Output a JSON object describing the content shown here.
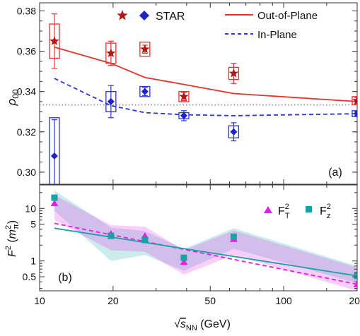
{
  "chart_data": [
    {
      "type": "scatter",
      "panel_label": "(a)",
      "ylabel": "ρ00",
      "yscale": "linear",
      "xscale": "log",
      "xlim": [
        10,
        200
      ],
      "ylim": [
        0.294,
        0.384
      ],
      "yticks": [
        0.3,
        0.32,
        0.34,
        0.36,
        0.38
      ],
      "ytick_labels": [
        "0.30",
        "0.32",
        "0.34",
        "0.36",
        "0.38"
      ],
      "reference_line": {
        "y": 0.3333,
        "style": "dotted"
      },
      "legend": [
        {
          "label": "STAR",
          "markers": [
            "star",
            "diamond"
          ]
        },
        {
          "label": "Out-of-Plane",
          "style": "solid",
          "color": "#e8322d"
        },
        {
          "label": "In-Plane",
          "style": "dashed",
          "color": "#2b35d6"
        }
      ],
      "series": [
        {
          "name": "STAR",
          "marker": "star",
          "color": "#b01818",
          "box_color": "#e8322d",
          "x": [
            11.5,
            19.6,
            27,
            39,
            62.4,
            200
          ],
          "y": [
            0.365,
            0.359,
            0.361,
            0.3375,
            0.349,
            0.3355
          ],
          "yerr": [
            0.0135,
            0.006,
            0.002,
            0.002,
            0.005,
            0.0015
          ],
          "sys": [
            0.0085,
            0.005,
            0.0035,
            0.0025,
            0.003,
            0.002
          ]
        },
        {
          "name": "STAR",
          "marker": "diamond",
          "color": "#1e22c8",
          "box_color": "#2b35d6",
          "x": [
            11.5,
            19.6,
            27,
            39,
            62.4,
            200
          ],
          "y": [
            0.308,
            0.335,
            0.34,
            0.328,
            0.32,
            0.329
          ],
          "yerr": [
            0.018,
            0.008,
            0.002,
            0.0025,
            0.0045,
            0.001
          ],
          "sys": [
            0.019,
            0.005,
            0.0025,
            0.0015,
            0.003,
            0.0015
          ]
        },
        {
          "name": "Out-of-Plane",
          "style": "solid",
          "color": "#e8322d",
          "x": [
            11.5,
            19.6,
            27,
            39,
            62.4,
            200
          ],
          "y": [
            0.362,
            0.354,
            0.347,
            0.3435,
            0.339,
            0.335
          ]
        },
        {
          "name": "In-Plane",
          "style": "dashed",
          "color": "#2b35d6",
          "x": [
            11.5,
            19.6,
            27,
            39,
            62.4,
            200
          ],
          "y": [
            0.3465,
            0.333,
            0.3295,
            0.3285,
            0.328,
            0.329
          ]
        }
      ]
    },
    {
      "type": "scatter",
      "panel_label": "(b)",
      "xlabel_parts": {
        "root": "√",
        "s": "s",
        "sub": "NN",
        "unit": " (GeV)"
      },
      "ylabel_parts": {
        "F": "F",
        "sup": "2",
        "open": " (",
        "m": "m",
        "msup": "2",
        "msub": "π",
        "close": ")"
      },
      "yscale": "log",
      "xscale": "log",
      "xlim": [
        10,
        200
      ],
      "ylim": [
        0.27,
        28
      ],
      "xticks": [
        10,
        20,
        50,
        100,
        200
      ],
      "xtick_labels": [
        "10",
        "20",
        "50",
        "100",
        "200"
      ],
      "yticks": [
        0.5,
        1,
        5,
        10
      ],
      "ytick_labels": [
        "0.5",
        "1",
        "5",
        "10"
      ],
      "legend": [
        {
          "label": "F",
          "sub": "T",
          "sup": "2",
          "marker": "triangle",
          "color": "#e61ee6"
        },
        {
          "label": "F",
          "sub": "z",
          "sup": "2",
          "marker": "square",
          "color": "#17a3a3"
        }
      ],
      "series": [
        {
          "name": "FT2",
          "marker": "triangle",
          "color": "#e61ee6",
          "x": [
            11.5,
            19.6,
            27,
            39,
            62.4,
            200
          ],
          "y": [
            12.5,
            3.3,
            3.0,
            0.95,
            2.6,
            0.36
          ],
          "band_low": [
            6.0,
            1.6,
            1.5,
            0.55,
            1.3,
            0.27
          ],
          "band_high": [
            18.0,
            4.8,
            4.5,
            1.6,
            3.8,
            0.75
          ],
          "fit": [
            5.2,
            0.36
          ],
          "fit_style": "dashed"
        },
        {
          "name": "Fz2",
          "marker": "square",
          "color": "#17a3a3",
          "x": [
            11.5,
            19.6,
            27,
            39,
            62.4,
            200
          ],
          "y": [
            16.0,
            3.0,
            2.5,
            1.15,
            2.9,
            0.52
          ],
          "band_low": [
            9.0,
            1.0,
            1.3,
            0.65,
            1.7,
            0.38
          ],
          "band_high": [
            22.0,
            4.3,
            3.7,
            1.7,
            4.2,
            0.8
          ],
          "fit": [
            4.2,
            0.52
          ],
          "fit_style": "solid"
        }
      ]
    }
  ]
}
